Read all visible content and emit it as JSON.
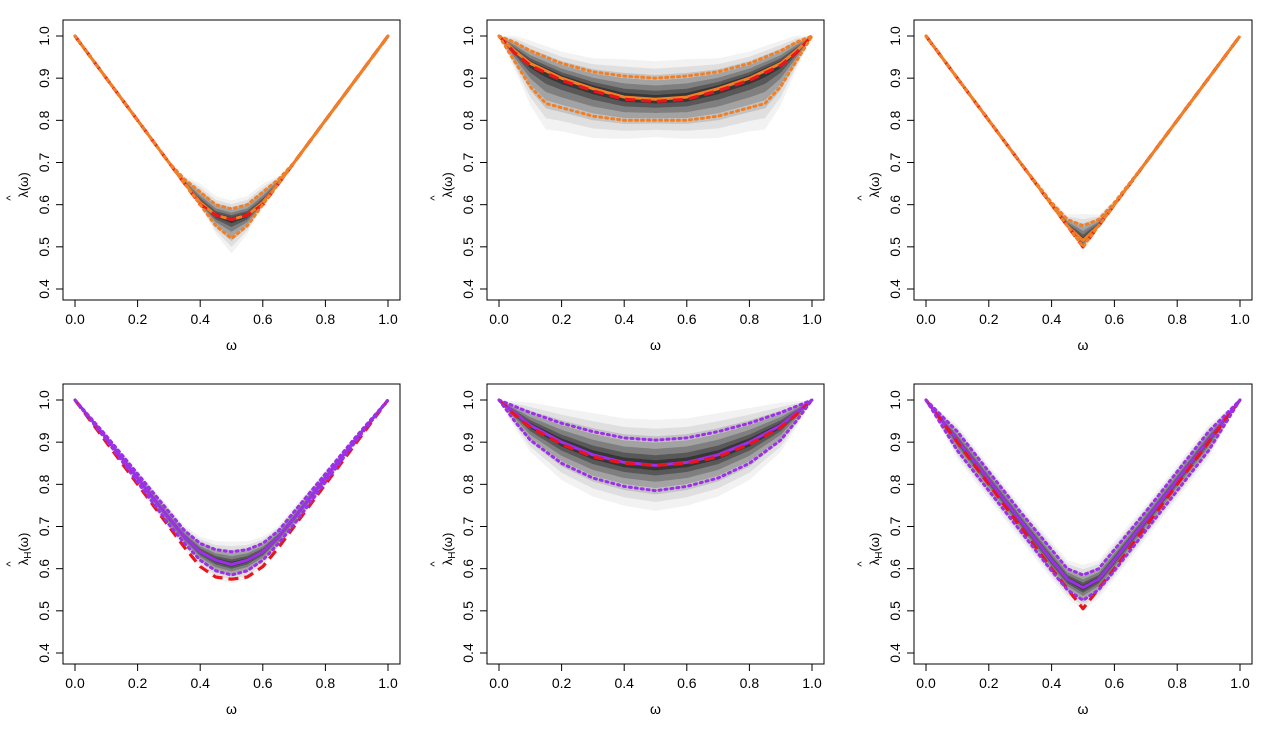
{
  "figure": {
    "xlabel": "ω",
    "ylabel_top": "λ(ω)",
    "ylabel_bottom": "λH(ω)",
    "hat_mark": "^",
    "x_ticks": [
      "0.0",
      "0.2",
      "0.4",
      "0.6",
      "0.8",
      "1.0"
    ],
    "y_ticks": [
      "0.4",
      "0.5",
      "0.6",
      "0.7",
      "0.8",
      "0.9",
      "1.0"
    ],
    "colors": {
      "envelope": "#000000",
      "true": "#e8161b",
      "top_estimate": "#f07f26",
      "bottom_estimate": "#9b30e8"
    }
  },
  "chart_data": [
    {
      "type": "line",
      "panel": "top-left",
      "xlabel": "ω",
      "ylabel": "λ(ω)",
      "xlim": [
        0,
        1
      ],
      "ylim": [
        0.4,
        1.0
      ],
      "series": [
        {
          "name": "true",
          "style": "dashed",
          "x": [
            0,
            0.1,
            0.2,
            0.3,
            0.35,
            0.4,
            0.45,
            0.5,
            0.55,
            0.6,
            0.65,
            0.7,
            0.8,
            0.9,
            1.0
          ],
          "y": [
            1.0,
            0.9,
            0.8,
            0.7,
            0.65,
            0.6,
            0.575,
            0.565,
            0.575,
            0.6,
            0.65,
            0.7,
            0.8,
            0.9,
            1.0
          ]
        },
        {
          "name": "mean_estimate",
          "style": "solid",
          "x": [
            0,
            0.1,
            0.2,
            0.3,
            0.35,
            0.4,
            0.45,
            0.5,
            0.55,
            0.6,
            0.65,
            0.7,
            0.8,
            0.9,
            1.0
          ],
          "y": [
            1.0,
            0.9,
            0.8,
            0.7,
            0.65,
            0.605,
            0.575,
            0.565,
            0.575,
            0.605,
            0.65,
            0.7,
            0.8,
            0.9,
            1.0
          ]
        },
        {
          "name": "upper_band",
          "style": "dotted",
          "x": [
            0,
            0.1,
            0.2,
            0.3,
            0.35,
            0.4,
            0.45,
            0.5,
            0.55,
            0.6,
            0.65,
            0.7,
            0.8,
            0.9,
            1.0
          ],
          "y": [
            1.0,
            0.9,
            0.8,
            0.7,
            0.66,
            0.63,
            0.6,
            0.59,
            0.6,
            0.63,
            0.66,
            0.7,
            0.8,
            0.9,
            1.0
          ]
        },
        {
          "name": "lower_band",
          "style": "dotted",
          "x": [
            0,
            0.1,
            0.2,
            0.3,
            0.35,
            0.4,
            0.45,
            0.5,
            0.55,
            0.6,
            0.65,
            0.7,
            0.8,
            0.9,
            1.0
          ],
          "y": [
            1.0,
            0.9,
            0.8,
            0.7,
            0.65,
            0.6,
            0.55,
            0.52,
            0.55,
            0.6,
            0.65,
            0.7,
            0.8,
            0.9,
            1.0
          ]
        }
      ]
    },
    {
      "type": "line",
      "panel": "top-middle",
      "xlabel": "ω",
      "ylabel": "λ(ω)",
      "xlim": [
        0,
        1
      ],
      "ylim": [
        0.4,
        1.0
      ],
      "series": [
        {
          "name": "true",
          "style": "dashed",
          "x": [
            0,
            0.05,
            0.1,
            0.2,
            0.3,
            0.4,
            0.5,
            0.6,
            0.7,
            0.8,
            0.9,
            0.95,
            1.0
          ],
          "y": [
            1.0,
            0.96,
            0.93,
            0.895,
            0.87,
            0.85,
            0.845,
            0.85,
            0.87,
            0.895,
            0.93,
            0.96,
            1.0
          ]
        },
        {
          "name": "mean_estimate",
          "style": "solid",
          "x": [
            0,
            0.05,
            0.1,
            0.2,
            0.3,
            0.4,
            0.5,
            0.6,
            0.7,
            0.8,
            0.9,
            0.95,
            1.0
          ],
          "y": [
            1.0,
            0.965,
            0.935,
            0.9,
            0.875,
            0.855,
            0.85,
            0.855,
            0.875,
            0.9,
            0.935,
            0.965,
            1.0
          ]
        },
        {
          "name": "upper_band",
          "style": "dotted",
          "x": [
            0,
            0.05,
            0.1,
            0.2,
            0.3,
            0.4,
            0.5,
            0.6,
            0.7,
            0.8,
            0.9,
            0.95,
            1.0
          ],
          "y": [
            1.0,
            0.985,
            0.965,
            0.935,
            0.915,
            0.905,
            0.9,
            0.905,
            0.915,
            0.935,
            0.965,
            0.985,
            1.0
          ]
        },
        {
          "name": "lower_band",
          "style": "dotted",
          "x": [
            0,
            0.05,
            0.1,
            0.15,
            0.2,
            0.3,
            0.4,
            0.5,
            0.6,
            0.7,
            0.8,
            0.85,
            0.9,
            0.95,
            1.0
          ],
          "y": [
            1.0,
            0.94,
            0.88,
            0.84,
            0.83,
            0.81,
            0.8,
            0.8,
            0.8,
            0.81,
            0.83,
            0.84,
            0.88,
            0.94,
            1.0
          ]
        }
      ]
    },
    {
      "type": "line",
      "panel": "top-right",
      "xlabel": "ω",
      "ylabel": "λ(ω)",
      "xlim": [
        0,
        1
      ],
      "ylim": [
        0.4,
        1.0
      ],
      "series": [
        {
          "name": "true",
          "style": "dashed",
          "x": [
            0,
            0.1,
            0.2,
            0.3,
            0.4,
            0.5,
            0.6,
            0.7,
            0.8,
            0.9,
            1.0
          ],
          "y": [
            1.0,
            0.9,
            0.8,
            0.7,
            0.6,
            0.5,
            0.6,
            0.7,
            0.8,
            0.9,
            1.0
          ]
        },
        {
          "name": "mean_estimate",
          "style": "solid",
          "x": [
            0,
            0.1,
            0.2,
            0.3,
            0.4,
            0.45,
            0.5,
            0.55,
            0.6,
            0.7,
            0.8,
            0.9,
            1.0
          ],
          "y": [
            1.0,
            0.9,
            0.8,
            0.7,
            0.6,
            0.55,
            0.515,
            0.55,
            0.6,
            0.7,
            0.8,
            0.9,
            1.0
          ]
        },
        {
          "name": "upper_band",
          "style": "dotted",
          "x": [
            0,
            0.1,
            0.2,
            0.3,
            0.4,
            0.45,
            0.5,
            0.55,
            0.6,
            0.7,
            0.8,
            0.9,
            1.0
          ],
          "y": [
            1.0,
            0.9,
            0.8,
            0.7,
            0.605,
            0.565,
            0.55,
            0.565,
            0.605,
            0.7,
            0.8,
            0.9,
            1.0
          ]
        },
        {
          "name": "lower_band",
          "style": "dotted",
          "x": [
            0,
            0.1,
            0.2,
            0.3,
            0.4,
            0.5,
            0.6,
            0.7,
            0.8,
            0.9,
            1.0
          ],
          "y": [
            1.0,
            0.9,
            0.8,
            0.7,
            0.6,
            0.5,
            0.6,
            0.7,
            0.8,
            0.9,
            1.0
          ]
        }
      ]
    },
    {
      "type": "line",
      "panel": "bottom-left",
      "xlabel": "ω",
      "ylabel": "λH(ω)",
      "xlim": [
        0,
        1
      ],
      "ylim": [
        0.4,
        1.0
      ],
      "series": [
        {
          "name": "true",
          "style": "dashed",
          "x": [
            0,
            0.1,
            0.2,
            0.3,
            0.35,
            0.4,
            0.45,
            0.5,
            0.55,
            0.6,
            0.65,
            0.7,
            0.8,
            0.9,
            1.0
          ],
          "y": [
            1.0,
            0.9,
            0.8,
            0.7,
            0.65,
            0.605,
            0.58,
            0.575,
            0.58,
            0.605,
            0.65,
            0.7,
            0.8,
            0.9,
            1.0
          ]
        },
        {
          "name": "mean_estimate",
          "style": "solid",
          "x": [
            0,
            0.1,
            0.2,
            0.3,
            0.35,
            0.4,
            0.45,
            0.5,
            0.55,
            0.6,
            0.65,
            0.7,
            0.8,
            0.9,
            1.0
          ],
          "y": [
            1.0,
            0.91,
            0.815,
            0.72,
            0.675,
            0.64,
            0.62,
            0.61,
            0.62,
            0.64,
            0.675,
            0.72,
            0.815,
            0.91,
            1.0
          ]
        },
        {
          "name": "upper_band",
          "style": "dotted",
          "x": [
            0,
            0.1,
            0.2,
            0.3,
            0.35,
            0.4,
            0.45,
            0.5,
            0.55,
            0.6,
            0.65,
            0.7,
            0.8,
            0.9,
            1.0
          ],
          "y": [
            1.0,
            0.915,
            0.825,
            0.735,
            0.69,
            0.66,
            0.645,
            0.64,
            0.645,
            0.66,
            0.69,
            0.735,
            0.825,
            0.915,
            1.0
          ]
        },
        {
          "name": "lower_band",
          "style": "dotted",
          "x": [
            0,
            0.1,
            0.2,
            0.3,
            0.35,
            0.4,
            0.45,
            0.5,
            0.55,
            0.6,
            0.65,
            0.7,
            0.8,
            0.9,
            1.0
          ],
          "y": [
            1.0,
            0.905,
            0.805,
            0.705,
            0.66,
            0.62,
            0.595,
            0.585,
            0.595,
            0.62,
            0.66,
            0.705,
            0.805,
            0.905,
            1.0
          ]
        }
      ]
    },
    {
      "type": "line",
      "panel": "bottom-middle",
      "xlabel": "ω",
      "ylabel": "λH(ω)",
      "xlim": [
        0,
        1
      ],
      "ylim": [
        0.4,
        1.0
      ],
      "series": [
        {
          "name": "true",
          "style": "dashed",
          "x": [
            0,
            0.05,
            0.1,
            0.2,
            0.3,
            0.4,
            0.5,
            0.6,
            0.7,
            0.8,
            0.9,
            0.95,
            1.0
          ],
          "y": [
            1.0,
            0.965,
            0.935,
            0.895,
            0.865,
            0.85,
            0.845,
            0.85,
            0.865,
            0.895,
            0.935,
            0.965,
            1.0
          ]
        },
        {
          "name": "mean_estimate",
          "style": "solid",
          "x": [
            0,
            0.05,
            0.1,
            0.2,
            0.3,
            0.4,
            0.5,
            0.6,
            0.7,
            0.8,
            0.9,
            0.95,
            1.0
          ],
          "y": [
            1.0,
            0.97,
            0.94,
            0.9,
            0.87,
            0.852,
            0.845,
            0.852,
            0.87,
            0.9,
            0.94,
            0.97,
            1.0
          ]
        },
        {
          "name": "upper_band",
          "style": "dotted",
          "x": [
            0,
            0.05,
            0.1,
            0.2,
            0.3,
            0.4,
            0.5,
            0.6,
            0.7,
            0.8,
            0.9,
            0.95,
            1.0
          ],
          "y": [
            1.0,
            0.985,
            0.97,
            0.945,
            0.925,
            0.91,
            0.905,
            0.91,
            0.925,
            0.945,
            0.97,
            0.985,
            1.0
          ]
        },
        {
          "name": "lower_band",
          "style": "dotted",
          "x": [
            0,
            0.05,
            0.1,
            0.2,
            0.3,
            0.4,
            0.5,
            0.6,
            0.7,
            0.8,
            0.9,
            0.95,
            1.0
          ],
          "y": [
            1.0,
            0.95,
            0.905,
            0.85,
            0.815,
            0.795,
            0.785,
            0.795,
            0.815,
            0.85,
            0.905,
            0.95,
            1.0
          ]
        }
      ]
    },
    {
      "type": "line",
      "panel": "bottom-right",
      "xlabel": "ω",
      "ylabel": "λH(ω)",
      "xlim": [
        0,
        1
      ],
      "ylim": [
        0.4,
        1.0
      ],
      "series": [
        {
          "name": "true",
          "style": "dashed",
          "x": [
            0,
            0.1,
            0.2,
            0.3,
            0.4,
            0.5,
            0.6,
            0.7,
            0.8,
            0.9,
            1.0
          ],
          "y": [
            1.0,
            0.9,
            0.8,
            0.7,
            0.6,
            0.505,
            0.6,
            0.7,
            0.8,
            0.9,
            1.0
          ]
        },
        {
          "name": "mean_estimate",
          "style": "solid",
          "x": [
            0,
            0.1,
            0.2,
            0.3,
            0.4,
            0.45,
            0.5,
            0.55,
            0.6,
            0.7,
            0.8,
            0.9,
            1.0
          ],
          "y": [
            1.0,
            0.905,
            0.81,
            0.715,
            0.62,
            0.575,
            0.555,
            0.575,
            0.62,
            0.715,
            0.81,
            0.905,
            1.0
          ]
        },
        {
          "name": "upper_band",
          "style": "dotted",
          "x": [
            0,
            0.1,
            0.2,
            0.3,
            0.4,
            0.45,
            0.5,
            0.55,
            0.6,
            0.7,
            0.8,
            0.9,
            1.0
          ],
          "y": [
            1.0,
            0.925,
            0.83,
            0.735,
            0.645,
            0.6,
            0.585,
            0.6,
            0.645,
            0.735,
            0.83,
            0.925,
            1.0
          ]
        },
        {
          "name": "lower_band",
          "style": "dotted",
          "x": [
            0,
            0.1,
            0.2,
            0.3,
            0.4,
            0.45,
            0.5,
            0.55,
            0.6,
            0.7,
            0.8,
            0.9,
            1.0
          ],
          "y": [
            1.0,
            0.88,
            0.785,
            0.69,
            0.595,
            0.55,
            0.525,
            0.55,
            0.595,
            0.69,
            0.785,
            0.88,
            1.0
          ]
        }
      ]
    }
  ]
}
